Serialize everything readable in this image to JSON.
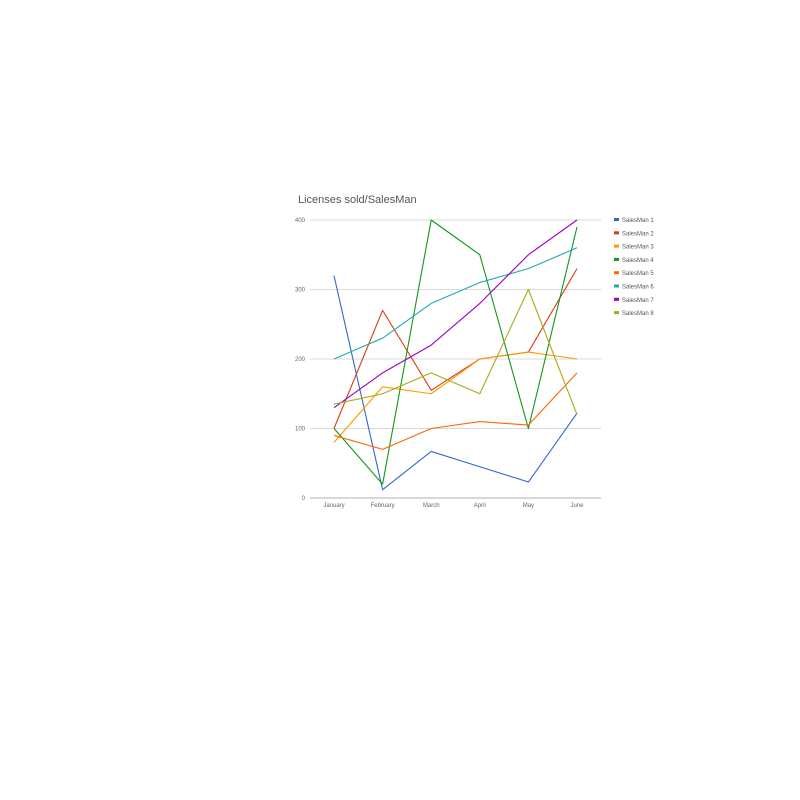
{
  "chart_data": {
    "type": "line",
    "title": "Licenses sold/SalesMan",
    "xlabel": "",
    "ylabel": "",
    "categories": [
      "January",
      "February",
      "March",
      "April",
      "May",
      "June"
    ],
    "yticks": [
      "0",
      "100",
      "200",
      "300",
      "400"
    ],
    "ylim": [
      0,
      400
    ],
    "grid": true,
    "legend_position": "right",
    "series": [
      {
        "name": "SalesMan 1",
        "color": "#3366cc",
        "values": [
          320,
          12,
          67,
          45,
          23,
          122
        ]
      },
      {
        "name": "SalesMan 2",
        "color": "#dc3912",
        "values": [
          100,
          270,
          155,
          200,
          210,
          330
        ]
      },
      {
        "name": "SalesMan 3",
        "color": "#ff9900",
        "values": [
          80,
          160,
          150,
          200,
          210,
          200
        ]
      },
      {
        "name": "SalesMan 4",
        "color": "#109618",
        "values": [
          100,
          20,
          400,
          350,
          100,
          390
        ]
      },
      {
        "name": "SalesMan 5",
        "color": "#ff6600",
        "values": [
          90,
          70,
          100,
          110,
          105,
          180
        ]
      },
      {
        "name": "SalesMan 6",
        "color": "#22aaaa",
        "values": [
          200,
          230,
          280,
          310,
          330,
          360
        ]
      },
      {
        "name": "SalesMan 7",
        "color": "#9900cc",
        "values": [
          130,
          180,
          220,
          280,
          350,
          400
        ]
      },
      {
        "name": "SalesMan 8",
        "color": "#aaaa11",
        "values": [
          135,
          150,
          180,
          150,
          300,
          120
        ]
      }
    ]
  }
}
